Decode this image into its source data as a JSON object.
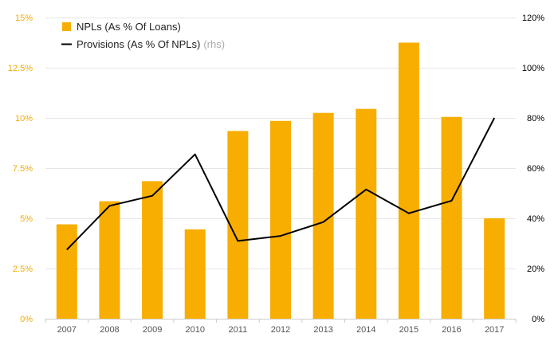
{
  "chart_data": {
    "type": "bar",
    "categories": [
      "2007",
      "2008",
      "2009",
      "2010",
      "2011",
      "2012",
      "2013",
      "2014",
      "2015",
      "2016",
      "2017"
    ],
    "series": [
      {
        "name": "NPLs (As % Of Loans)",
        "type": "bar",
        "axis": "left",
        "color": "#f7ae00",
        "values": [
          4.7,
          5.85,
          6.85,
          4.45,
          9.35,
          9.85,
          10.25,
          10.45,
          13.75,
          10.05,
          5.0
        ]
      },
      {
        "name": "Provisions (As % Of NPLs)",
        "name_suffix": "(rhs)",
        "type": "line",
        "axis": "right",
        "color": "#000000",
        "values": [
          27.5,
          45,
          49,
          65.5,
          31,
          33,
          38.5,
          51.5,
          42,
          47,
          80
        ]
      }
    ],
    "y_left": {
      "ticks": [
        "0%",
        "2.5%",
        "5%",
        "7.5%",
        "10%",
        "12.5%",
        "15%"
      ],
      "range": [
        0,
        15
      ],
      "color": "#f2ac00"
    },
    "y_right": {
      "ticks": [
        "0%",
        "20%",
        "40%",
        "60%",
        "80%",
        "100%",
        "120%"
      ],
      "range": [
        0,
        120
      ],
      "color": "#000000"
    },
    "grid": true,
    "legend_position": "top-left",
    "title": "",
    "xlabel": "",
    "ylabel": ""
  }
}
